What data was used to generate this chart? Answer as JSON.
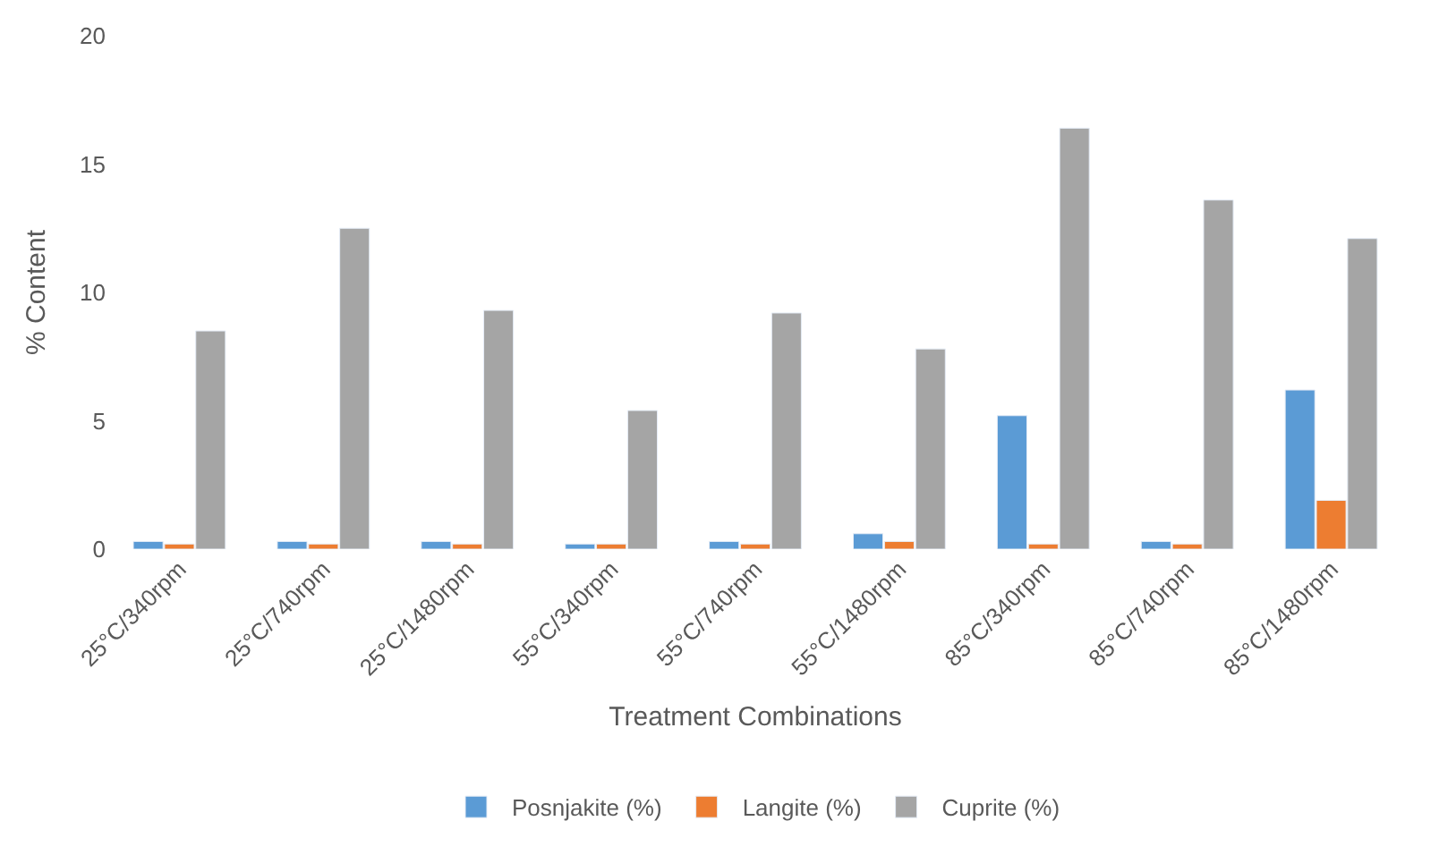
{
  "chart_data": {
    "type": "bar",
    "xlabel": "Treatment Combinations",
    "ylabel": "% Content",
    "categories": [
      "25°C/340rpm",
      "25°C/740rpm",
      "25°C/1480rpm",
      "55°C/340rpm",
      "55°C/740rpm",
      "55°C/1480rpm",
      "85°C/340rpm",
      "85°C/740rpm",
      "85°C/1480rpm"
    ],
    "series": [
      {
        "name": "Posnjakite (%)",
        "color": "#5b9bd5",
        "values": [
          0.3,
          0.3,
          0.3,
          0.2,
          0.3,
          0.6,
          5.2,
          0.3,
          6.2
        ]
      },
      {
        "name": "Langite (%)",
        "color": "#ed7d31",
        "values": [
          0.2,
          0.2,
          0.2,
          0.2,
          0.2,
          0.3,
          0.2,
          0.2,
          1.9
        ]
      },
      {
        "name": "Cuprite (%)",
        "color": "#a5a5a5",
        "values": [
          8.5,
          12.5,
          9.3,
          5.4,
          9.2,
          7.8,
          16.4,
          13.6,
          12.1
        ]
      }
    ],
    "ylim": [
      0,
      20
    ],
    "yticks": [
      0,
      5,
      10,
      15,
      20
    ],
    "legend": "bottom"
  }
}
